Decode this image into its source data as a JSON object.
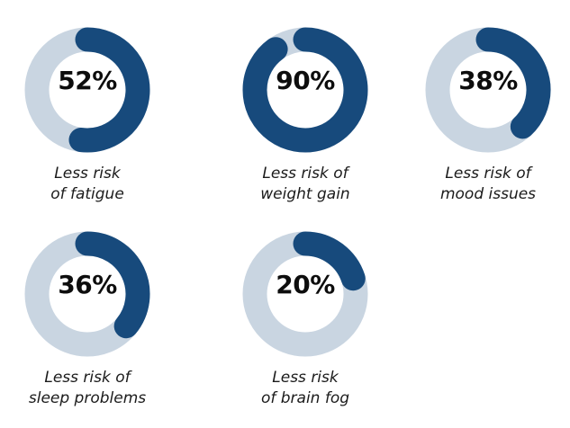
{
  "colors": {
    "filled": "#174a7c",
    "track": "#c9d5e1",
    "text": "#0d0d0d"
  },
  "chart_data": {
    "type": "donut",
    "title": "",
    "items": [
      {
        "value": 52,
        "display": "52%",
        "label_lines": [
          "Less risk",
          "of fatigue"
        ]
      },
      {
        "value": 90,
        "display": "90%",
        "label_lines": [
          "Less risk of",
          "weight gain"
        ]
      },
      {
        "value": 38,
        "display": "38%",
        "label_lines": [
          "Less risk of",
          "mood issues"
        ]
      },
      {
        "value": 36,
        "display": "36%",
        "label_lines": [
          "Less risk of",
          "sleep problems"
        ]
      },
      {
        "value": 20,
        "display": "20%",
        "label_lines": [
          "Less risk",
          "of brain fog"
        ]
      }
    ]
  }
}
